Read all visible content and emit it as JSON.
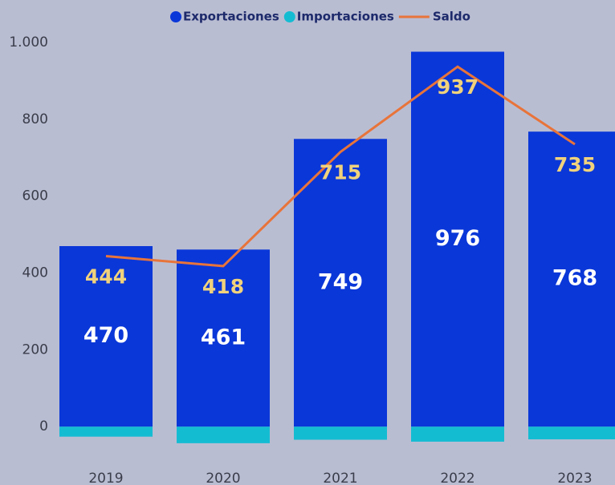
{
  "chart_data": {
    "type": "bar",
    "categories": [
      "2019",
      "2020",
      "2021",
      "2022",
      "2023"
    ],
    "series": [
      {
        "name": "Exportaciones",
        "color": "#0a37d8",
        "values": [
          470,
          461,
          749,
          976,
          768
        ]
      },
      {
        "name": "Importaciones",
        "color": "#14bcd2",
        "values": [
          -26,
          -43,
          -34,
          -39,
          -33
        ]
      },
      {
        "name": "Saldo",
        "type": "line",
        "color": "#e8743a",
        "values": [
          444,
          418,
          715,
          937,
          735
        ]
      }
    ],
    "ylim": [
      -60,
      1000
    ],
    "yticks": [
      0,
      200,
      400,
      600,
      800,
      {
        "value": 1000,
        "label": "1.000"
      }
    ],
    "legend": "top"
  }
}
